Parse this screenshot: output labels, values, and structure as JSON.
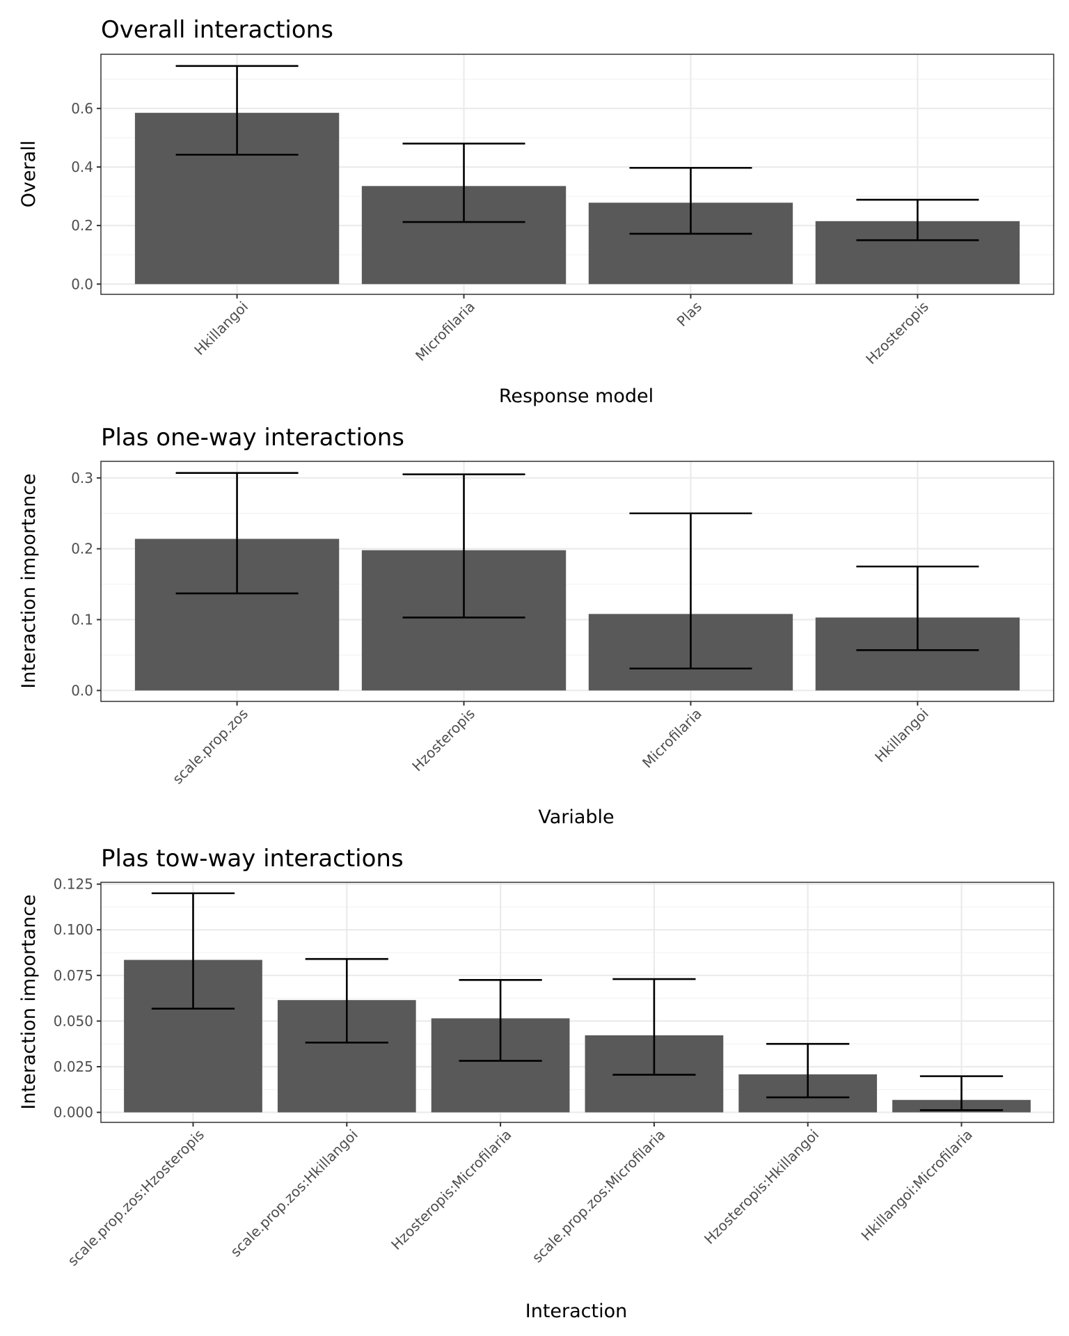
{
  "chart_data": [
    {
      "type": "bar",
      "title": "Overall interactions",
      "xlabel": "Response model",
      "ylabel": "Overall",
      "categories": [
        "Hkillangoi",
        "Microfilaria",
        "Plas",
        "Hzosteropis"
      ],
      "values": [
        0.585,
        0.335,
        0.278,
        0.215
      ],
      "error_low": [
        0.442,
        0.212,
        0.172,
        0.15
      ],
      "error_high": [
        0.745,
        0.48,
        0.397,
        0.288
      ],
      "ylim": [
        -0.035,
        0.785
      ],
      "yticks": [
        0.0,
        0.2,
        0.4,
        0.6
      ],
      "ytick_labels": [
        "0.0",
        "0.2",
        "0.4",
        "0.6"
      ],
      "grid": true,
      "legend": "none"
    },
    {
      "type": "bar",
      "title": "Plas one-way interactions",
      "xlabel": "Variable",
      "ylabel": "Interaction importance",
      "categories": [
        "scale.prop.zos",
        "Hzosteropis",
        "Microfilaria",
        "Hkillangoi"
      ],
      "values": [
        0.214,
        0.198,
        0.108,
        0.103
      ],
      "error_low": [
        0.137,
        0.103,
        0.031,
        0.057
      ],
      "error_high": [
        0.307,
        0.305,
        0.25,
        0.175
      ],
      "ylim": [
        -0.0154,
        0.3234
      ],
      "yticks": [
        0.0,
        0.1,
        0.2,
        0.3
      ],
      "ytick_labels": [
        "0.0",
        "0.1",
        "0.2",
        "0.3"
      ],
      "grid": true,
      "legend": "none"
    },
    {
      "type": "bar",
      "title": "Plas tow-way interactions",
      "xlabel": "Interaction",
      "ylabel": "Interaction importance",
      "categories": [
        "scale.prop.zos:Hzosteropis",
        "scale.prop.zos:Hkillangoi",
        "Hzosteropis:Microfilaria",
        "scale.prop.zos:Microfilaria",
        "Hzosteropis:Hkillangoi",
        "Hkillangoi:Microfilaria"
      ],
      "values": [
        0.0835,
        0.0615,
        0.0515,
        0.0422,
        0.0208,
        0.0068
      ],
      "error_low": [
        0.0568,
        0.0382,
        0.0282,
        0.0206,
        0.0082,
        0.0012
      ],
      "error_high": [
        0.12,
        0.084,
        0.0725,
        0.073,
        0.0375,
        0.0198
      ],
      "ylim": [
        -0.0055,
        0.126
      ],
      "yticks": [
        0.0,
        0.025,
        0.05,
        0.075,
        0.1,
        0.125
      ],
      "ytick_labels": [
        "0.000",
        "0.025",
        "0.050",
        "0.075",
        "0.100",
        "0.125"
      ],
      "grid": true,
      "legend": "none"
    }
  ]
}
